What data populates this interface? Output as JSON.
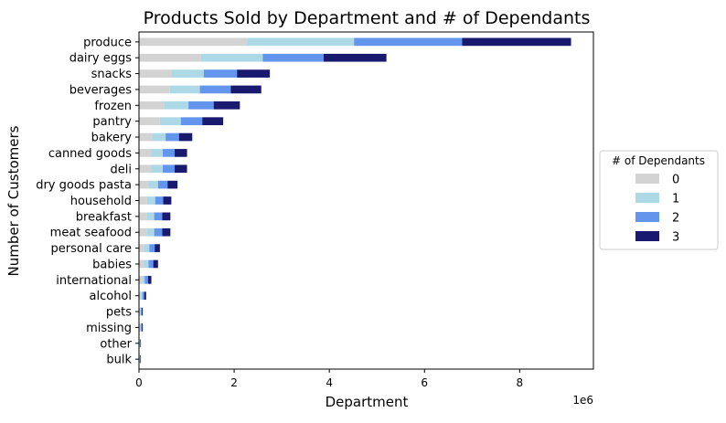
{
  "chart_data": {
    "type": "bar",
    "orientation": "horizontal",
    "stacked": true,
    "title": "Products Sold by Department and # of Dependants",
    "xlabel": "Department",
    "ylabel": "Number of Customers",
    "x_offset_label": "1e6",
    "x_tick_values": [
      0,
      2,
      4,
      6,
      8
    ],
    "x_tick_labels": [
      "0",
      "2",
      "4",
      "6",
      "8"
    ],
    "xlim": [
      0,
      9.55
    ],
    "x_units": "millions",
    "grid": false,
    "legend_position": "center-right",
    "legend_title": "# of Dependants",
    "categories": [
      "produce",
      "dairy eggs",
      "snacks",
      "beverages",
      "frozen",
      "pantry",
      "bakery",
      "canned goods",
      "deli",
      "dry goods pasta",
      "household",
      "breakfast",
      "meat seafood",
      "personal care",
      "babies",
      "international",
      "alcohol",
      "pets",
      "missing",
      "other",
      "bulk"
    ],
    "series": [
      {
        "name": "0",
        "color": "#d3d3d3",
        "values": [
          2.27,
          1.3,
          0.68,
          0.65,
          0.53,
          0.44,
          0.28,
          0.25,
          0.25,
          0.2,
          0.17,
          0.16,
          0.16,
          0.11,
          0.1,
          0.06,
          0.04,
          0.02,
          0.02,
          0.01,
          0.01
        ]
      },
      {
        "name": "1",
        "color": "#add8e6",
        "values": [
          2.25,
          1.3,
          0.68,
          0.63,
          0.51,
          0.44,
          0.28,
          0.25,
          0.25,
          0.2,
          0.17,
          0.16,
          0.16,
          0.11,
          0.1,
          0.06,
          0.03,
          0.02,
          0.02,
          0.01,
          0.01
        ]
      },
      {
        "name": "2",
        "color": "#6495ed",
        "values": [
          2.27,
          1.28,
          0.7,
          0.65,
          0.53,
          0.45,
          0.28,
          0.25,
          0.25,
          0.2,
          0.17,
          0.17,
          0.17,
          0.11,
          0.1,
          0.07,
          0.04,
          0.02,
          0.02,
          0.01,
          0.01
        ]
      },
      {
        "name": "3",
        "color": "#191970",
        "values": [
          2.29,
          1.32,
          0.69,
          0.64,
          0.55,
          0.44,
          0.28,
          0.26,
          0.26,
          0.21,
          0.17,
          0.17,
          0.17,
          0.11,
          0.1,
          0.07,
          0.04,
          0.02,
          0.02,
          0.01,
          0.01
        ]
      }
    ]
  }
}
